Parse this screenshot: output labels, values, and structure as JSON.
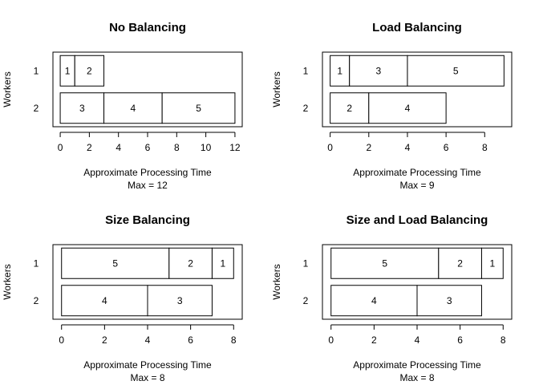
{
  "chart_data": [
    {
      "type": "bar",
      "orientation": "horizontal-stacked",
      "title": "No Balancing",
      "xlabel": "Approximate Processing Time",
      "subtitle": "Max = 12",
      "ylabel": "Workers",
      "xlim": [
        -0.5,
        12.5
      ],
      "xticks": [
        0,
        2,
        4,
        6,
        8,
        10,
        12
      ],
      "workers": [
        {
          "label": "1",
          "segments": [
            {
              "label": "1",
              "start": 0,
              "end": 1
            },
            {
              "label": "2",
              "start": 1,
              "end": 3
            }
          ]
        },
        {
          "label": "2",
          "segments": [
            {
              "label": "3",
              "start": 0,
              "end": 3
            },
            {
              "label": "4",
              "start": 3,
              "end": 7
            },
            {
              "label": "5",
              "start": 7,
              "end": 12
            }
          ]
        }
      ]
    },
    {
      "type": "bar",
      "orientation": "horizontal-stacked",
      "title": "Load Balancing",
      "xlabel": "Approximate Processing Time",
      "subtitle": "Max = 9",
      "ylabel": "Workers",
      "xlim": [
        -0.4,
        9.4
      ],
      "xticks": [
        0,
        2,
        4,
        6,
        8
      ],
      "workers": [
        {
          "label": "1",
          "segments": [
            {
              "label": "1",
              "start": 0,
              "end": 1
            },
            {
              "label": "3",
              "start": 1,
              "end": 4
            },
            {
              "label": "5",
              "start": 4,
              "end": 9
            }
          ]
        },
        {
          "label": "2",
          "segments": [
            {
              "label": "2",
              "start": 0,
              "end": 2
            },
            {
              "label": "4",
              "start": 2,
              "end": 6
            }
          ]
        }
      ]
    },
    {
      "type": "bar",
      "orientation": "horizontal-stacked",
      "title": "Size Balancing",
      "xlabel": "Approximate Processing Time",
      "subtitle": "Max = 8",
      "ylabel": "Workers",
      "xlim": [
        -0.4,
        8.4
      ],
      "xticks": [
        0,
        2,
        4,
        6,
        8
      ],
      "workers": [
        {
          "label": "1",
          "segments": [
            {
              "label": "5",
              "start": 0,
              "end": 5
            },
            {
              "label": "2",
              "start": 5,
              "end": 7
            },
            {
              "label": "1",
              "start": 7,
              "end": 8
            }
          ]
        },
        {
          "label": "2",
          "segments": [
            {
              "label": "4",
              "start": 0,
              "end": 4
            },
            {
              "label": "3",
              "start": 4,
              "end": 7
            }
          ]
        }
      ]
    },
    {
      "type": "bar",
      "orientation": "horizontal-stacked",
      "title": "Size and Load Balancing",
      "xlabel": "Approximate Processing Time",
      "subtitle": "Max = 8",
      "ylabel": "Workers",
      "xlim": [
        -0.4,
        8.4
      ],
      "xticks": [
        0,
        2,
        4,
        6,
        8
      ],
      "workers": [
        {
          "label": "1",
          "segments": [
            {
              "label": "5",
              "start": 0,
              "end": 5
            },
            {
              "label": "2",
              "start": 5,
              "end": 7
            },
            {
              "label": "1",
              "start": 7,
              "end": 8
            }
          ]
        },
        {
          "label": "2",
          "segments": [
            {
              "label": "4",
              "start": 0,
              "end": 4
            },
            {
              "label": "3",
              "start": 4,
              "end": 7
            }
          ]
        }
      ]
    }
  ]
}
